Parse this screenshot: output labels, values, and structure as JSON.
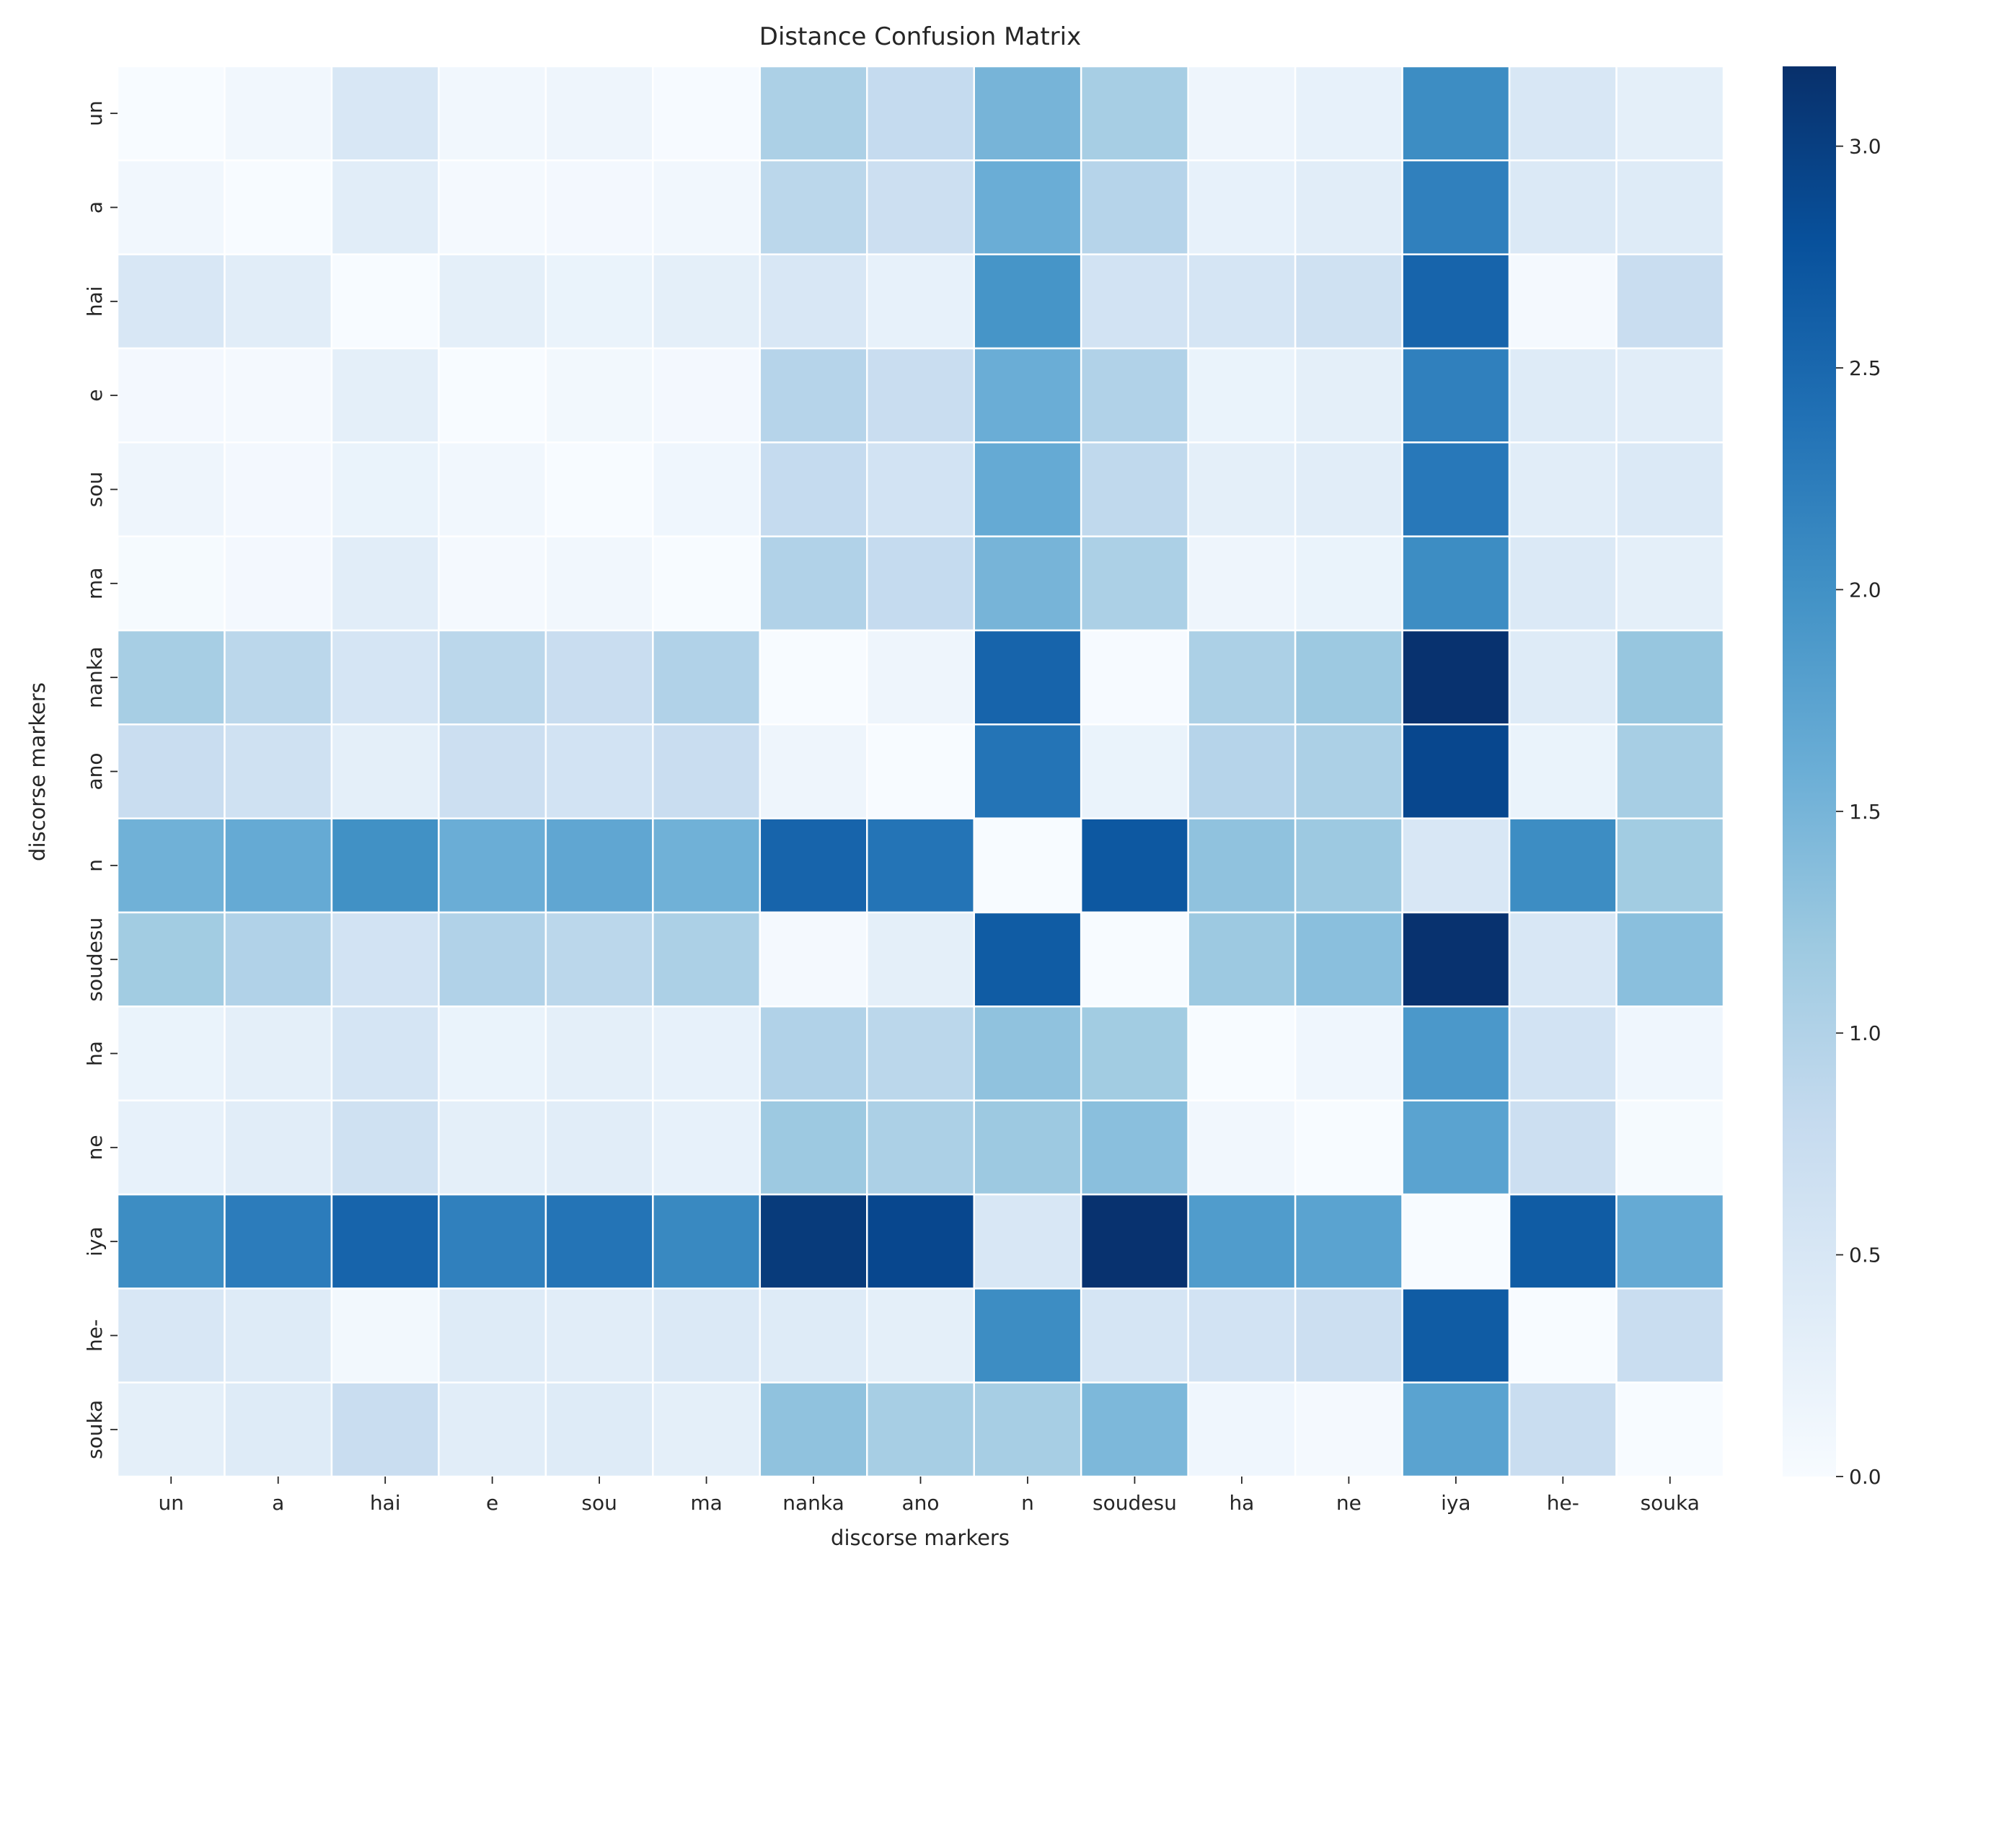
{
  "chart_data": {
    "type": "heatmap",
    "title": "Distance Confusion Matrix",
    "xlabel": "discorse markers",
    "ylabel": "discorse markers",
    "x_categories": [
      "un",
      "a",
      "hai",
      "e",
      "sou",
      "ma",
      "nanka",
      "ano",
      "n",
      "soudesu",
      "ha",
      "ne",
      "iya",
      "he-",
      "souka"
    ],
    "y_categories": [
      "un",
      "a",
      "hai",
      "e",
      "sou",
      "ma",
      "nanka",
      "ano",
      "n",
      "soudesu",
      "ha",
      "ne",
      "iya",
      "he-",
      "souka"
    ],
    "colormap": "Blues",
    "colormap_colors": [
      "#f7fbff",
      "#deebf7",
      "#c6dbef",
      "#9ecae1",
      "#6baed6",
      "#4292c6",
      "#2171b5",
      "#08519c",
      "#08306b"
    ],
    "vmin": 0,
    "vmax": 3.18,
    "colorbar_ticks": [
      "0.0",
      "0.5",
      "1.0",
      "1.5",
      "2.0",
      "2.5",
      "3.0"
    ],
    "grid": false,
    "values": [
      [
        0,
        0.1,
        0.5,
        0.1,
        0.15,
        0.02,
        1.05,
        0.8,
        1.5,
        1.1,
        0.15,
        0.25,
        2.05,
        0.5,
        0.3
      ],
      [
        0.1,
        0,
        0.35,
        0.05,
        0.07,
        0.1,
        0.9,
        0.7,
        1.6,
        0.95,
        0.25,
        0.35,
        2.2,
        0.45,
        0.4
      ],
      [
        0.5,
        0.35,
        0,
        0.3,
        0.2,
        0.3,
        0.5,
        0.25,
        1.95,
        0.6,
        0.55,
        0.65,
        2.55,
        0.05,
        0.75
      ],
      [
        0.07,
        0.05,
        0.3,
        0,
        0.08,
        0.07,
        0.95,
        0.75,
        1.6,
        1.0,
        0.2,
        0.3,
        2.2,
        0.4,
        0.35
      ],
      [
        0.15,
        0.07,
        0.2,
        0.1,
        0,
        0.12,
        0.8,
        0.6,
        1.65,
        0.85,
        0.3,
        0.35,
        2.3,
        0.35,
        0.45
      ],
      [
        0.03,
        0.07,
        0.35,
        0.05,
        0.1,
        0,
        1.0,
        0.8,
        1.5,
        1.05,
        0.15,
        0.2,
        2.05,
        0.45,
        0.3
      ],
      [
        1.1,
        0.9,
        0.55,
        0.9,
        0.75,
        1.0,
        0,
        0.15,
        2.55,
        0.02,
        1.05,
        1.2,
        3.15,
        0.4,
        1.25
      ],
      [
        0.75,
        0.65,
        0.3,
        0.7,
        0.6,
        0.75,
        0.15,
        0,
        2.35,
        0.2,
        0.95,
        1.05,
        2.9,
        0.2,
        1.1
      ],
      [
        1.55,
        1.65,
        2.0,
        1.6,
        1.7,
        1.55,
        2.55,
        2.35,
        0,
        2.7,
        1.3,
        1.2,
        0.5,
        2.05,
        1.15
      ],
      [
        1.15,
        1.0,
        0.6,
        1.0,
        0.9,
        1.05,
        0.05,
        0.3,
        2.65,
        0,
        1.2,
        1.35,
        3.15,
        0.5,
        1.35
      ],
      [
        0.2,
        0.3,
        0.55,
        0.2,
        0.3,
        0.25,
        1.0,
        0.9,
        1.3,
        1.15,
        0,
        0.12,
        1.9,
        0.6,
        0.12
      ],
      [
        0.25,
        0.35,
        0.65,
        0.3,
        0.35,
        0.25,
        1.2,
        1.05,
        1.2,
        1.35,
        0.1,
        0,
        1.75,
        0.7,
        0.03
      ],
      [
        2.05,
        2.25,
        2.55,
        2.2,
        2.35,
        2.1,
        3.05,
        2.9,
        0.5,
        3.15,
        1.85,
        1.75,
        0,
        2.65,
        1.65
      ],
      [
        0.5,
        0.4,
        0.08,
        0.4,
        0.35,
        0.45,
        0.4,
        0.3,
        2.05,
        0.55,
        0.6,
        0.7,
        2.65,
        0,
        0.75
      ],
      [
        0.3,
        0.4,
        0.75,
        0.35,
        0.4,
        0.3,
        1.3,
        1.1,
        1.1,
        1.45,
        0.12,
        0.05,
        1.75,
        0.75,
        0
      ]
    ]
  }
}
